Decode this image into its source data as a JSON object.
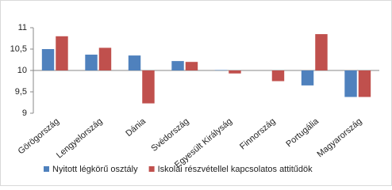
{
  "chart_data": {
    "type": "bar",
    "categories": [
      "Görögország",
      "Lengyelország",
      "Dánia",
      "Svédország",
      "Egyesült Királyság",
      "Finnország",
      "Portugália",
      "Magyarország"
    ],
    "series": [
      {
        "name": "Nyitott légkörű osztály",
        "color": "#4f81bd",
        "values": [
          10.5,
          10.37,
          10.35,
          10.22,
          10.01,
          null,
          9.65,
          9.38
        ]
      },
      {
        "name": "Iskolai részvétellel kapcsolatos attitűdök",
        "color": "#c0504d",
        "values": [
          10.8,
          10.53,
          9.23,
          10.2,
          9.93,
          9.75,
          10.85,
          9.38
        ]
      }
    ],
    "ylim": [
      9,
      11
    ],
    "yticks": [
      9,
      {
        "value": 9.5,
        "label": "9,5"
      },
      10,
      {
        "value": 10.5,
        "label": "10,5"
      },
      11
    ],
    "baseline": 10,
    "legend": "bottom"
  }
}
